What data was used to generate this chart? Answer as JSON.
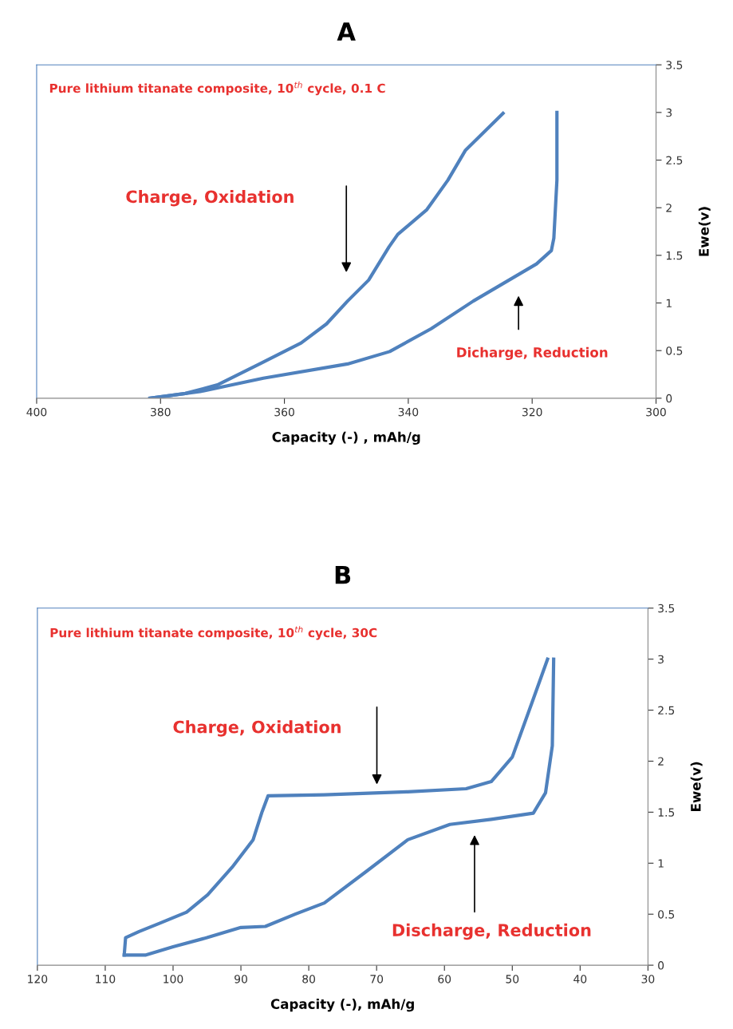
{
  "chart_data": [
    {
      "type": "line",
      "title": "A",
      "subtitle": "Pure lithium titanate composite, 10$^{th}$ cycle, 0.1 C",
      "xlabel": "Capacity (-) , mAh/g",
      "ylabel": "Ewe(v)",
      "xlim": [
        400,
        300
      ],
      "xticks": [
        400,
        380,
        360,
        340,
        320,
        300
      ],
      "ylim": [
        0,
        3.5
      ],
      "yticks": [
        0,
        0.5,
        1,
        1.5,
        2,
        2.5,
        3,
        3.5
      ],
      "grid": false,
      "series": [
        {
          "color": "#4f81bd",
          "x": [
            381.7,
            376,
            370.8,
            364,
            357.3,
            353.2,
            349.8,
            346.4,
            343.1,
            341.7,
            337,
            333.6,
            330.8,
            324.7
          ],
          "values": [
            0,
            0.05,
            0.14,
            0.36,
            0.58,
            0.78,
            1.02,
            1.24,
            1.59,
            1.72,
            1.98,
            2.29,
            2.6,
            2.99
          ]
        },
        {
          "color": "#4f81bd",
          "x": [
            381.7,
            373.6,
            363.4,
            349.8,
            343,
            336.3,
            329.5,
            322.7,
            319.3,
            316.9,
            316.5,
            316,
            316
          ],
          "values": [
            0,
            0.07,
            0.21,
            0.36,
            0.49,
            0.73,
            1.02,
            1.28,
            1.41,
            1.55,
            1.68,
            2.29,
            3.0
          ]
        }
      ],
      "annotations": [
        "Charge, Oxidation",
        "Dicharge, Reduction"
      ]
    },
    {
      "type": "line",
      "title": "B",
      "subtitle": "Pure lithium titanate composite, 10$^{th}$ cycle, 30C",
      "xlabel": "Capacity (-), mAh/g",
      "ylabel": "Ewe(v)",
      "xlim": [
        120,
        30
      ],
      "xticks": [
        120,
        110,
        100,
        90,
        80,
        70,
        60,
        50,
        40,
        30
      ],
      "ylim": [
        0,
        3.5
      ],
      "yticks": [
        0,
        0.5,
        1,
        1.5,
        2,
        2.5,
        3,
        3.5
      ],
      "grid": false,
      "series": [
        {
          "color": "#4f81bd",
          "x": [
            107.2,
            107,
            105,
            102,
            98,
            94.9,
            91.3,
            88.2,
            86.9,
            86.0,
            77.7,
            65.4,
            56.8,
            53.1,
            50.0,
            46.9,
            44.8
          ],
          "values": [
            0.1,
            0.27,
            0.33,
            0.41,
            0.52,
            0.69,
            0.96,
            1.23,
            1.5,
            1.66,
            1.67,
            1.7,
            1.73,
            1.8,
            2.04,
            2.61,
            3.0
          ]
        },
        {
          "color": "#4f81bd",
          "x": [
            107.2,
            104,
            100,
            95,
            90,
            86.4,
            82,
            77.7,
            71.5,
            65.4,
            59.2,
            53.1,
            46.9,
            45.1,
            44.1,
            43.9
          ],
          "values": [
            0.1,
            0.1,
            0.18,
            0.27,
            0.37,
            0.38,
            0.5,
            0.61,
            0.92,
            1.23,
            1.38,
            1.43,
            1.49,
            1.69,
            2.15,
            3.0
          ]
        }
      ],
      "annotations": [
        "Charge, Oxidation",
        "Discharge, Reduction"
      ]
    }
  ]
}
